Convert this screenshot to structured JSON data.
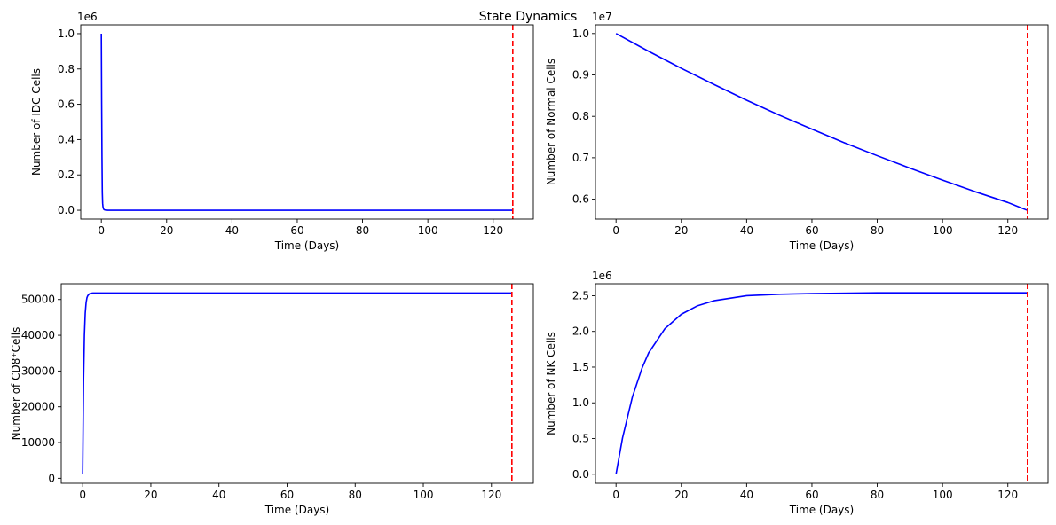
{
  "suptitle": "State Dynamics",
  "colors": {
    "line": "#0000ff",
    "vline": "#ff0000",
    "axes": "#000000"
  },
  "chart_data": [
    {
      "type": "line",
      "xlabel": "Time (Days)",
      "ylabel": "Number of IDC Cells",
      "offset_label": "1e6",
      "xlim": [
        -6.3,
        132.3
      ],
      "ylim": [
        -0.05,
        1.05
      ],
      "xticks": [
        0,
        20,
        40,
        60,
        80,
        100,
        120
      ],
      "yticks": [
        0.0,
        0.2,
        0.4,
        0.6,
        0.8,
        1.0
      ],
      "ytick_labels": [
        "0.0",
        "0.2",
        "0.4",
        "0.6",
        "0.8",
        "1.0"
      ],
      "vline_x": 126,
      "series": [
        {
          "x": [
            0,
            0.1,
            0.2,
            0.3,
            0.4,
            0.5,
            0.7,
            1.0,
            2,
            5,
            20,
            60,
            126
          ],
          "y": [
            1.0,
            0.6,
            0.3,
            0.1,
            0.04,
            0.02,
            0.006,
            0.002,
            0.0,
            0.0,
            0.0,
            0.0,
            0.0
          ]
        }
      ]
    },
    {
      "type": "line",
      "xlabel": "Time (Days)",
      "ylabel": "Number of Normal Cells",
      "offset_label": "1e7",
      "xlim": [
        -6.3,
        132.3
      ],
      "ylim": [
        0.552,
        1.021
      ],
      "xticks": [
        0,
        20,
        40,
        60,
        80,
        100,
        120
      ],
      "yticks": [
        0.6,
        0.7,
        0.8,
        0.9,
        1.0
      ],
      "ytick_labels": [
        "0.6",
        "0.7",
        "0.8",
        "0.9",
        "1.0"
      ],
      "vline_x": 126,
      "series": [
        {
          "x": [
            0,
            10,
            20,
            30,
            40,
            50,
            60,
            70,
            80,
            90,
            100,
            110,
            120,
            126
          ],
          "y": [
            1.0,
            0.957,
            0.916,
            0.877,
            0.839,
            0.803,
            0.769,
            0.736,
            0.705,
            0.675,
            0.646,
            0.618,
            0.592,
            0.573
          ]
        }
      ]
    },
    {
      "type": "line",
      "xlabel": "Time (Days)",
      "ylabel": "Number of CD8⁺Cells",
      "xlim": [
        -6.3,
        132.3
      ],
      "ylim": [
        -1400,
        54400
      ],
      "xticks": [
        0,
        20,
        40,
        60,
        80,
        100,
        120
      ],
      "yticks": [
        0,
        10000,
        20000,
        30000,
        40000,
        50000
      ],
      "ytick_labels": [
        "0",
        "10000",
        "20000",
        "30000",
        "40000",
        "50000"
      ],
      "vline_x": 126,
      "series": [
        {
          "x": [
            0,
            0.25,
            0.5,
            0.75,
            1.0,
            1.25,
            1.5,
            2.0,
            2.5,
            3.0,
            4.0,
            6.0,
            20,
            60,
            126
          ],
          "y": [
            1200,
            27000,
            40000,
            46200,
            49100,
            50500,
            51100,
            51600,
            51750,
            51800,
            51800,
            51800,
            51800,
            51800,
            51800
          ]
        }
      ]
    },
    {
      "type": "line",
      "xlabel": "Time (Days)",
      "ylabel": "Number of NK Cells",
      "offset_label": "1e6",
      "xlim": [
        -6.3,
        132.3
      ],
      "ylim": [
        -0.127,
        2.667
      ],
      "xticks": [
        0,
        20,
        40,
        60,
        80,
        100,
        120
      ],
      "yticks": [
        0.0,
        0.5,
        1.0,
        1.5,
        2.0,
        2.5
      ],
      "ytick_labels": [
        "0.0",
        "0.5",
        "1.0",
        "1.5",
        "2.0",
        "2.5"
      ],
      "vline_x": 126,
      "series": [
        {
          "x": [
            0,
            2,
            5,
            8,
            10,
            15,
            20,
            25,
            30,
            40,
            50,
            60,
            80,
            100,
            126
          ],
          "y": [
            0.0,
            0.51,
            1.08,
            1.49,
            1.7,
            2.04,
            2.24,
            2.36,
            2.43,
            2.5,
            2.52,
            2.53,
            2.54,
            2.54,
            2.54
          ]
        }
      ]
    }
  ]
}
